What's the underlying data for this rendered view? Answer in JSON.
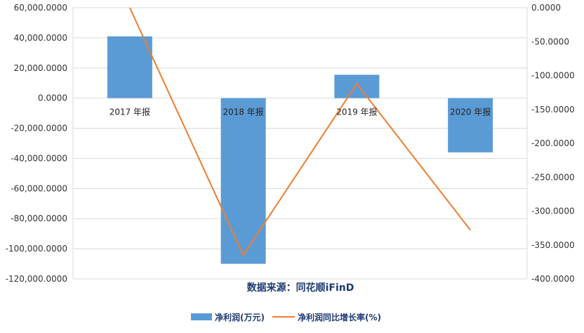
{
  "chart_data": {
    "type": "bar+line",
    "categories": [
      "2017 年报",
      "2018 年报",
      "2019 年报",
      "2020 年报"
    ],
    "series": [
      {
        "name": "净利润(万元)",
        "type": "bar",
        "axis": "left",
        "color": "#5b9bd5",
        "values": [
          41000,
          -110000,
          15500,
          -36000
        ]
      },
      {
        "name": "净利润同比增长率(%)",
        "type": "line",
        "axis": "right",
        "color": "#ed7d31",
        "values": [
          0,
          -365,
          -112,
          -328
        ]
      }
    ],
    "left_axis": {
      "min": -120000,
      "max": 60000,
      "step": 20000,
      "ticks": [
        "60,000.0000",
        "40,000.0000",
        "20,000.0000",
        "0.0000",
        "-20,000.0000",
        "-40,000.0000",
        "-60,000.0000",
        "-80,000.0000",
        "-100,000.0000",
        "-120,000.0000"
      ]
    },
    "right_axis": {
      "min": -400,
      "max": 0,
      "step": 50,
      "ticks": [
        "0.0000",
        "-50.0000",
        "-100.0000",
        "-150.0000",
        "-200.0000",
        "-250.0000",
        "-300.0000",
        "-350.0000",
        "-400.0000"
      ]
    },
    "grid": true,
    "legend": "bottom",
    "source": "数据来源：同花顺iFinD"
  }
}
